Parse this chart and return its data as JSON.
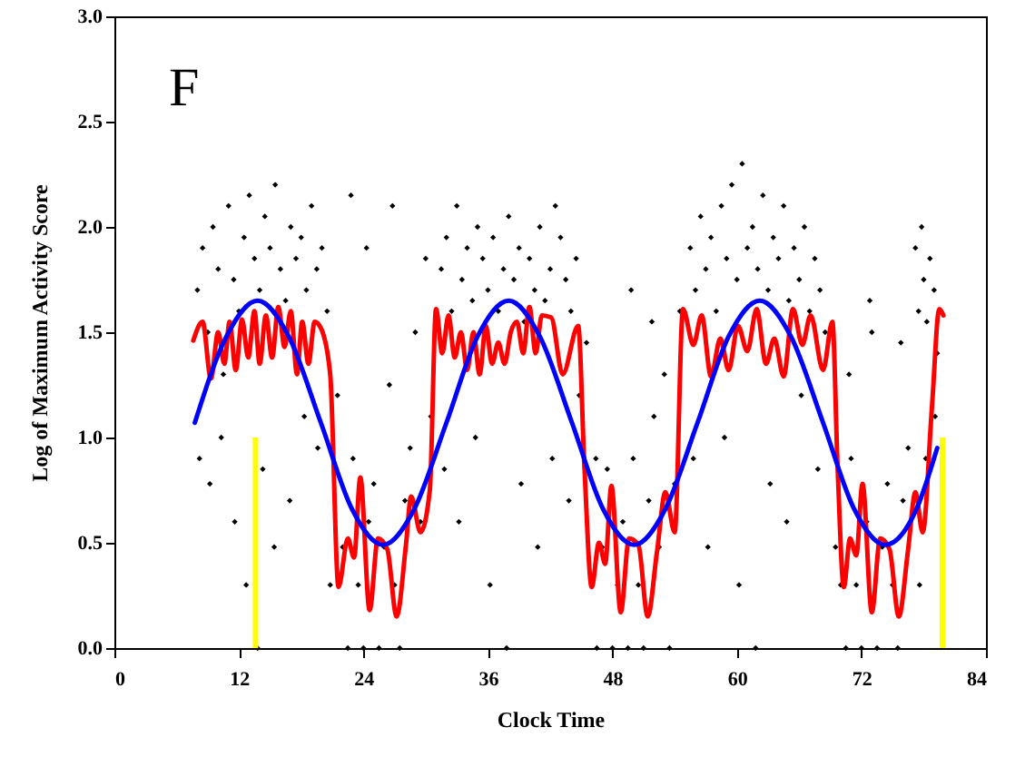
{
  "chart_data": {
    "type": "scatter",
    "xlabel": "Clock Time",
    "ylabel": "Log of Maximum Activity Score",
    "annotations": [
      "F"
    ],
    "xlim": [
      0,
      84
    ],
    "xticks": [
      0,
      12,
      24,
      36,
      48,
      60,
      72,
      84
    ],
    "ylim": [
      0,
      3
    ],
    "yticks": [
      {
        "value": 0,
        "label": "0.0"
      },
      0.5,
      {
        "value": 1,
        "label": "1.0"
      },
      1.5,
      {
        "value": 2,
        "label": "2.0"
      },
      2.5,
      {
        "value": 3,
        "label": "3.0"
      }
    ],
    "marker": "diamond",
    "series": [
      {
        "color": "#000000",
        "x": [
          8,
          8.5,
          9,
          9.5,
          10,
          10.5,
          11,
          11.5,
          12,
          12.5,
          13,
          13.5,
          14,
          14.5,
          15,
          15.5,
          16,
          16.5,
          17,
          17.5,
          18,
          18.5,
          19,
          19.5,
          20,
          20.5,
          8.2,
          9.2,
          10.3,
          11.6,
          12.7,
          13.8,
          14.3,
          15.4,
          16.9,
          18.3,
          19.6,
          20.8,
          21.5,
          22,
          22.5,
          23,
          23.5,
          24,
          24.5,
          25,
          25.5,
          26,
          26.5,
          27,
          27.5,
          28,
          28.5,
          29,
          29.5,
          30,
          30.5,
          22.8,
          26.8,
          24.3,
          31.5,
          32,
          32.5,
          33,
          33.5,
          34,
          34.5,
          35,
          35.5,
          36,
          36.5,
          37,
          37.5,
          38,
          38.5,
          39,
          39.5,
          40,
          40.5,
          41,
          41.5,
          42,
          42.5,
          43,
          43.5,
          44,
          44.5,
          31.8,
          33.2,
          34.8,
          36.2,
          37.8,
          39.2,
          40.8,
          42.2,
          43.8,
          44.8,
          45.5,
          46.4,
          46.5,
          47,
          47.5,
          48,
          48.5,
          49,
          49.5,
          50,
          50.5,
          51,
          51.5,
          52,
          52.5,
          53,
          53.5,
          54,
          54.5,
          49.8,
          51.8,
          55.5,
          56,
          56.5,
          57,
          57.5,
          58,
          58.5,
          59,
          59.5,
          60,
          60.5,
          61,
          61.5,
          62,
          62.5,
          63,
          63.5,
          64,
          64.5,
          65,
          65.5,
          66,
          66.5,
          67,
          67.5,
          68,
          68.5,
          55.8,
          57.2,
          58.8,
          60.2,
          61.8,
          63.2,
          64.8,
          66.2,
          67.8,
          69.5,
          70,
          70.5,
          71,
          71.5,
          72,
          72.5,
          73,
          73.5,
          74,
          74.5,
          75,
          75.5,
          76,
          76.5,
          70.8,
          72.8,
          75.8,
          77.2,
          77.5,
          77.8,
          78,
          78.3,
          78.6,
          79,
          79.3,
          77.6,
          78.2,
          79.1
        ],
        "values": [
          1.7,
          1.9,
          1.5,
          2.0,
          1.8,
          1.3,
          2.1,
          1.75,
          1.6,
          1.95,
          2.15,
          1.85,
          1.7,
          2.05,
          1.9,
          2.2,
          1.8,
          1.65,
          2.0,
          1.85,
          1.95,
          1.7,
          2.1,
          1.8,
          1.9,
          1.6,
          0.9,
          0.78,
          1.0,
          0.6,
          0.3,
          0,
          0.85,
          0.48,
          0.7,
          1.1,
          0.95,
          0.3,
          1.2,
          0.48,
          0,
          0.9,
          0.3,
          0,
          0.6,
          0.78,
          0,
          0.48,
          1.25,
          0.3,
          0,
          0.7,
          0.95,
          1.5,
          0.6,
          1.85,
          1.1,
          2.15,
          2.1,
          1.9,
          1.8,
          1.95,
          1.6,
          2.1,
          1.75,
          1.9,
          1.65,
          2.0,
          1.85,
          1.7,
          1.95,
          1.6,
          1.8,
          2.05,
          1.75,
          1.9,
          1.55,
          1.85,
          1.7,
          2.0,
          1.65,
          1.8,
          2.1,
          1.95,
          1.75,
          1.6,
          1.85,
          0.85,
          0.6,
          1.0,
          0.3,
          0,
          0.78,
          0.48,
          0.9,
          0.7,
          1.2,
          1.45,
          0.9,
          0,
          0.48,
          0.85,
          0,
          0.3,
          0.6,
          0,
          0.9,
          0.3,
          0,
          0.7,
          1.1,
          0.48,
          1.3,
          0,
          0.78,
          1.6,
          1.7,
          1.55,
          1.9,
          1.7,
          2.05,
          1.8,
          1.95,
          1.6,
          2.1,
          1.85,
          2.2,
          1.75,
          2.3,
          1.9,
          2.0,
          1.8,
          2.15,
          1.7,
          1.95,
          1.85,
          2.1,
          1.65,
          1.9,
          1.75,
          2.0,
          1.6,
          1.85,
          1.7,
          1.5,
          0.9,
          0.48,
          1.0,
          0.3,
          0,
          0.78,
          0.6,
          1.2,
          0.85,
          0.48,
          0.3,
          0,
          0.9,
          0.3,
          0,
          0.6,
          1.5,
          0,
          0.48,
          0.78,
          0.3,
          0,
          0.7,
          0.95,
          1.3,
          1.65,
          1.45,
          1.9,
          1.6,
          2.0,
          1.75,
          1.55,
          1.85,
          1.7,
          1.4,
          0.3,
          0.9,
          1.1
        ]
      },
      {
        "type": "line",
        "marker": "none",
        "color": "#ff0000",
        "x": [
          7.6,
          8.5,
          9.3,
          10.0,
          10.6,
          11.1,
          11.7,
          12.3,
          12.9,
          13.5,
          14.0,
          14.6,
          15.2,
          15.8,
          16.4,
          17.0,
          17.6,
          18.1,
          18.7,
          19.3,
          19.9,
          20.8,
          21.6,
          22.5,
          23.1,
          23.7,
          24.6,
          25.4,
          26.3,
          27.2,
          28.1,
          28.6,
          29.5,
          30.4,
          31.0,
          31.6,
          32.2,
          32.8,
          33.4,
          34.0,
          34.6,
          35.2,
          35.8,
          36.4,
          37.0,
          37.6,
          38.2,
          38.8,
          39.4,
          40.0,
          40.6,
          41.2,
          42.1,
          43.2,
          44.7,
          45.3,
          46.0,
          46.7,
          47.3,
          47.9,
          48.8,
          49.6,
          50.5,
          51.4,
          52.3,
          53.1,
          54.0,
          54.8,
          55.8,
          56.6,
          57.5,
          58.4,
          59.2,
          60.1,
          61.0,
          61.9,
          62.8,
          63.6,
          64.5,
          65.4,
          66.3,
          67.1,
          68.3,
          69.2,
          69.7,
          70.3,
          70.9,
          71.5,
          72.1,
          73.0,
          73.8,
          74.7,
          75.6,
          76.5,
          77.2,
          77.9,
          78.8,
          79.5,
          79.9
        ],
        "values": [
          1.46,
          1.55,
          1.28,
          1.5,
          1.35,
          1.55,
          1.32,
          1.56,
          1.38,
          1.6,
          1.35,
          1.58,
          1.38,
          1.62,
          1.43,
          1.6,
          1.3,
          1.55,
          1.35,
          1.55,
          1.52,
          1.3,
          0.29,
          0.52,
          0.43,
          0.81,
          0.18,
          0.52,
          0.47,
          0.15,
          0.49,
          0.72,
          0.55,
          0.75,
          1.61,
          1.4,
          1.58,
          1.38,
          1.5,
          1.32,
          1.5,
          1.3,
          1.53,
          1.35,
          1.45,
          1.35,
          1.5,
          1.55,
          1.4,
          1.62,
          1.4,
          1.58,
          1.57,
          1.3,
          1.53,
          0.86,
          0.29,
          0.5,
          0.4,
          0.77,
          0.17,
          0.52,
          0.49,
          0.15,
          0.46,
          0.74,
          0.55,
          1.61,
          1.44,
          1.58,
          1.29,
          1.47,
          1.32,
          1.53,
          1.41,
          1.61,
          1.35,
          1.47,
          1.29,
          1.61,
          1.44,
          1.58,
          1.32,
          1.55,
          0.86,
          0.29,
          0.52,
          0.44,
          0.78,
          0.17,
          0.52,
          0.47,
          0.15,
          0.47,
          0.74,
          0.55,
          1.15,
          1.61,
          1.58
        ]
      },
      {
        "type": "line",
        "marker": "none",
        "color": "#0000ff",
        "x": [
          7.75,
          10.8,
          13.8,
          16.8,
          19.9,
          22.9,
          25.9,
          28.9,
          32.0,
          35.0,
          38.0,
          41.0,
          44.1,
          47.1,
          50.1,
          53.1,
          56.2,
          59.2,
          62.2,
          65.2,
          68.3,
          71.3,
          74.3,
          77.3,
          79.3
        ],
        "values": [
          1.07,
          1.48,
          1.65,
          1.48,
          1.07,
          0.66,
          0.49,
          0.66,
          1.07,
          1.48,
          1.65,
          1.48,
          1.07,
          0.66,
          0.49,
          0.66,
          1.07,
          1.48,
          1.65,
          1.48,
          1.07,
          0.66,
          0.49,
          0.66,
          0.95
        ]
      },
      {
        "type": "bar",
        "color": "#ffff00",
        "x": [
          13.6,
          79.8
        ],
        "values": [
          1.0,
          1.0
        ]
      }
    ]
  }
}
